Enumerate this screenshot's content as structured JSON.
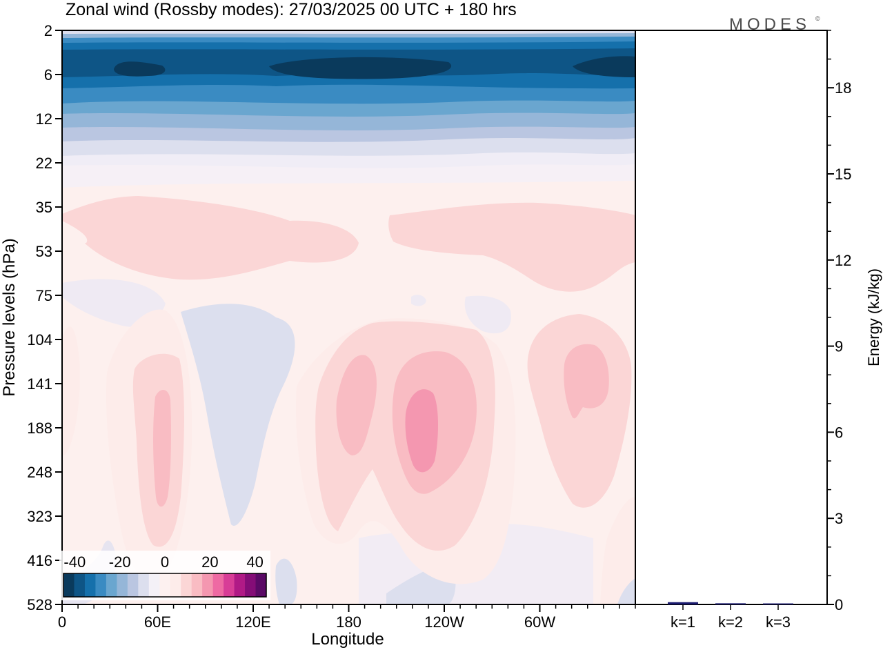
{
  "title": "Zonal wind (Rossby modes):  27/03/2025  00 UTC  + 180 hrs",
  "logo_text": "MODES",
  "logo_mark": "©",
  "colors": {
    "negative": [
      "#0a3a5c",
      "#0e5586",
      "#1570ab",
      "#3a8bc2",
      "#6aa6cf",
      "#95b6d8",
      "#bac6e1",
      "#dcdfee",
      "#f4f1f7"
    ],
    "neutral": "#fdf1f0",
    "positive": [
      "#fdecea",
      "#fbd6d6",
      "#f9bcc3",
      "#f497b0",
      "#ee6aa3",
      "#d83d97",
      "#b01a86",
      "#840d77",
      "#5a0a66"
    ]
  },
  "chart_data": [
    {
      "type": "heatmap",
      "title": "Zonal wind (Rossby modes):  27/03/2025  00 UTC  + 180 hrs",
      "xlabel": "Longitude",
      "ylabel": "Pressure levels (hPa)",
      "x_ticks": [
        "0",
        "60E",
        "120E",
        "180",
        "120W",
        "60W"
      ],
      "y_ticks": [
        "2",
        "6",
        "12",
        "22",
        "35",
        "53",
        "75",
        "104",
        "141",
        "188",
        "248",
        "323",
        "416",
        "528"
      ],
      "y_scale": "log",
      "colorbar": {
        "ticks": [
          "-40",
          "-20",
          "0",
          "20",
          "40"
        ],
        "range": [
          -45,
          45
        ],
        "step": 5
      },
      "grid": false
    },
    {
      "type": "bar",
      "ylabel": "Energy (kJ/kg)",
      "categories": [
        "k=1",
        "k=2",
        "k=3"
      ],
      "values": [
        0.08,
        0.04,
        0.03
      ],
      "y_ticks": [
        "0",
        "3",
        "6",
        "9",
        "12",
        "15",
        "18"
      ],
      "ylim": [
        0,
        20
      ],
      "bar_color": "#1a1a6e",
      "grid": false
    }
  ]
}
